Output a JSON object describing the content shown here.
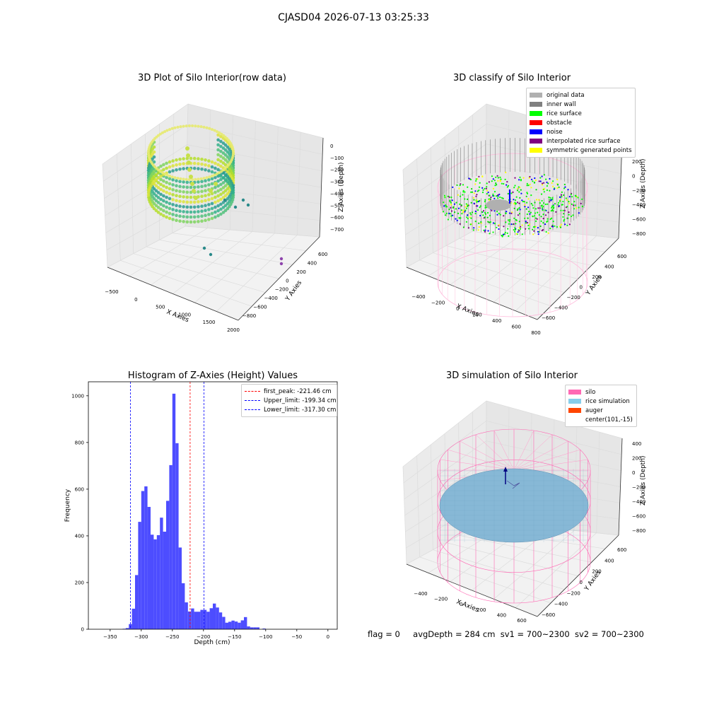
{
  "suptitle": "CJASD04 2026-07-13 03:25:33",
  "panels": {
    "raw": {
      "title": "3D Plot of Silo Interior(row data)",
      "xlabel": "X Axies",
      "ylabel": "Y Axies",
      "zlabel": "Z Axies (Depth)",
      "xticks": [
        "−500",
        "0",
        "500",
        "1000",
        "1500",
        "2000"
      ],
      "yticks": [
        "−800",
        "−600",
        "−400",
        "−200",
        "0",
        "200",
        "400",
        "600"
      ],
      "zticks": [
        "0",
        "−100",
        "−200",
        "−300",
        "−400",
        "−500",
        "−600",
        "−700"
      ]
    },
    "classify": {
      "title": "3D classify of Silo Interior",
      "xlabel": "X Axies",
      "ylabel": "Y Axies",
      "zlabel": "Z Axies (Depth)",
      "xticks": [
        "−400",
        "−200",
        "0",
        "200",
        "400",
        "600",
        "800"
      ],
      "yticks": [
        "−600",
        "−400",
        "−200",
        "0",
        "200",
        "400",
        "600"
      ],
      "zticks": [
        "200",
        "0",
        "−200",
        "−400",
        "−600",
        "−800"
      ],
      "legend": [
        {
          "label": "original data",
          "color": "#b0b0b0"
        },
        {
          "label": "inner wall",
          "color": "#808080"
        },
        {
          "label": "rice surface",
          "color": "#00ff00"
        },
        {
          "label": "obstacle",
          "color": "#ff0000"
        },
        {
          "label": "noise",
          "color": "#0000ff"
        },
        {
          "label": "interpolated rice surface",
          "color": "#800080"
        },
        {
          "label": "symmetric generated points",
          "color": "#ffff00"
        }
      ]
    },
    "simulation": {
      "title": "3D simulation of Silo Interior",
      "xlabel": "X Axies",
      "ylabel": "Y Axies",
      "zlabel": "Z Axies (Depth)",
      "xticks": [
        "−400",
        "−200",
        "0",
        "200",
        "400",
        "600"
      ],
      "yticks": [
        "−600",
        "−400",
        "−200",
        "0",
        "200",
        "400",
        "600"
      ],
      "zticks": [
        "400",
        "200",
        "0",
        "−200",
        "−400",
        "−600",
        "−800"
      ],
      "legend": [
        {
          "label": "silo",
          "color": "#ff69b4"
        },
        {
          "label": "rice simulation",
          "color": "#87ceeb"
        },
        {
          "label": "auger",
          "color": "#ff4500"
        },
        {
          "label": "center(101,-15)",
          "color": ""
        }
      ]
    }
  },
  "chart_data": {
    "type": "bar",
    "title": "Histogram of Z-Axies (Height) Values",
    "xlabel": "Depth (cm)",
    "ylabel": "Frequency",
    "xlim": [
      -385,
      15
    ],
    "ylim": [
      0,
      1060
    ],
    "xticks": [
      -350,
      -300,
      -250,
      -200,
      -150,
      -100,
      -50,
      0
    ],
    "yticks": [
      0,
      200,
      400,
      600,
      800,
      1000
    ],
    "bin_width": 5,
    "bin_starts": [
      -330,
      -325,
      -320,
      -315,
      -310,
      -305,
      -300,
      -295,
      -290,
      -285,
      -280,
      -275,
      -270,
      -265,
      -260,
      -255,
      -250,
      -245,
      -240,
      -235,
      -230,
      -225,
      -220,
      -215,
      -210,
      -205,
      -200,
      -195,
      -190,
      -185,
      -180,
      -175,
      -170,
      -165,
      -160,
      -155,
      -150,
      -145,
      -140,
      -135,
      -130,
      -125,
      -120,
      -115,
      -110,
      -105,
      -100,
      -95,
      -90,
      -85,
      -80,
      -75,
      -70,
      -65,
      -60,
      -55,
      -50,
      -45,
      -40,
      -35,
      -30,
      -25,
      -20,
      -15,
      -10,
      -5
    ],
    "values": [
      2,
      5,
      22,
      88,
      232,
      460,
      592,
      612,
      524,
      405,
      385,
      403,
      478,
      418,
      550,
      703,
      1009,
      797,
      350,
      197,
      115,
      76,
      89,
      75,
      75,
      83,
      83,
      75,
      90,
      110,
      93,
      72,
      53,
      28,
      32,
      37,
      33,
      28,
      38,
      52,
      12,
      8,
      8,
      8,
      0,
      3,
      0,
      0,
      0,
      0,
      0,
      0,
      0,
      0,
      0,
      0,
      0,
      0,
      0,
      0,
      0,
      0,
      0,
      0,
      0,
      0
    ],
    "bar_color": "#4d4dff",
    "vlines": [
      {
        "label": "first_peak: -221.46 cm",
        "x": -221.46,
        "color": "#ff0000"
      },
      {
        "label": "Upper_limit: -199.34 cm",
        "x": -199.34,
        "color": "#0000ff"
      },
      {
        "label": "Lower_limit: -317.30 cm",
        "x": -317.3,
        "color": "#0000ff"
      }
    ],
    "legend_position": "top-right"
  },
  "footer": {
    "flag": "flag = 0",
    "avg": "avgDepth = 284 cm",
    "sv1": "sv1 = 700~2300",
    "sv2": "sv2 = 700~2300"
  }
}
